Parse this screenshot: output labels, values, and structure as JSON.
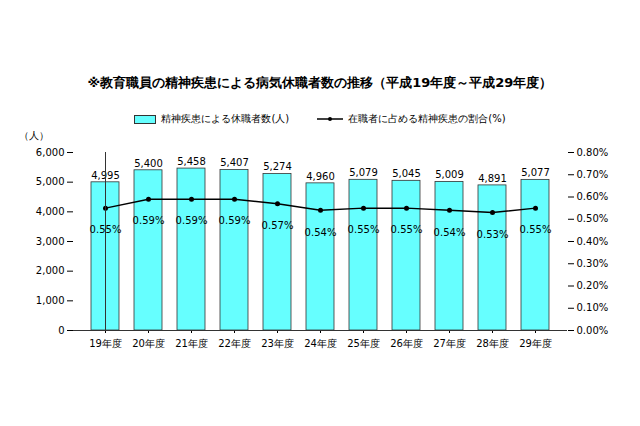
{
  "chart_data": {
    "type": "bar",
    "title": "※教育職員の精神疾患による病気休職者数の推移（平成19年度～平成29年度）",
    "categories": [
      "19年度",
      "20年度",
      "21年度",
      "22年度",
      "23年度",
      "24年度",
      "25年度",
      "26年度",
      "27年度",
      "28年度",
      "29年度"
    ],
    "ylabel": "（人）",
    "ylim": [
      0,
      6000
    ],
    "yticks": [
      0,
      {
        "value": 1000,
        "label": "1,000"
      },
      {
        "value": 2000,
        "label": "2,000"
      },
      {
        "value": 3000,
        "label": "3,000"
      },
      {
        "value": 4000,
        "label": "4,000"
      },
      {
        "value": 5000,
        "label": "5,000"
      },
      {
        "value": 6000,
        "label": "6,000"
      }
    ],
    "y2lim": [
      0,
      0.8
    ],
    "y2ticks": [
      {
        "value": 0,
        "label": "0.00%"
      },
      {
        "value": 0.1,
        "label": "0.10%"
      },
      {
        "value": 0.2,
        "label": "0.20%"
      },
      {
        "value": 0.3,
        "label": "0.30%"
      },
      {
        "value": 0.4,
        "label": "0.40%"
      },
      {
        "value": 0.5,
        "label": "0.50%"
      },
      {
        "value": 0.6,
        "label": "0.60%"
      },
      {
        "value": 0.7,
        "label": "0.70%"
      },
      {
        "value": 0.8,
        "label": "0.80%"
      }
    ],
    "grid": false,
    "legend": "top",
    "data_labels": true,
    "series": [
      {
        "name": "精神疾患による休職者数(人)",
        "type": "bar",
        "color": "#66ffff",
        "values": [
          4995,
          5400,
          5458,
          5407,
          5274,
          4960,
          5079,
          5045,
          5009,
          4891,
          5077
        ],
        "value_labels": [
          "4,995",
          "5,400",
          "5,458",
          "5,407",
          "5,274",
          "4,960",
          "5,079",
          "5,045",
          "5,009",
          "4,891",
          "5,077"
        ]
      },
      {
        "name": "在職者に占める精神疾患の割合(%)",
        "type": "line",
        "axis": "y2",
        "color": "#000000",
        "marker": "circle",
        "values": [
          0.55,
          0.59,
          0.59,
          0.59,
          0.57,
          0.54,
          0.55,
          0.55,
          0.54,
          0.53,
          0.55
        ],
        "value_labels": [
          "0.55%",
          "0.59%",
          "0.59%",
          "0.59%",
          "0.57%",
          "0.54%",
          "0.55%",
          "0.55%",
          "0.54%",
          "0.53%",
          "0.55%"
        ]
      }
    ]
  }
}
